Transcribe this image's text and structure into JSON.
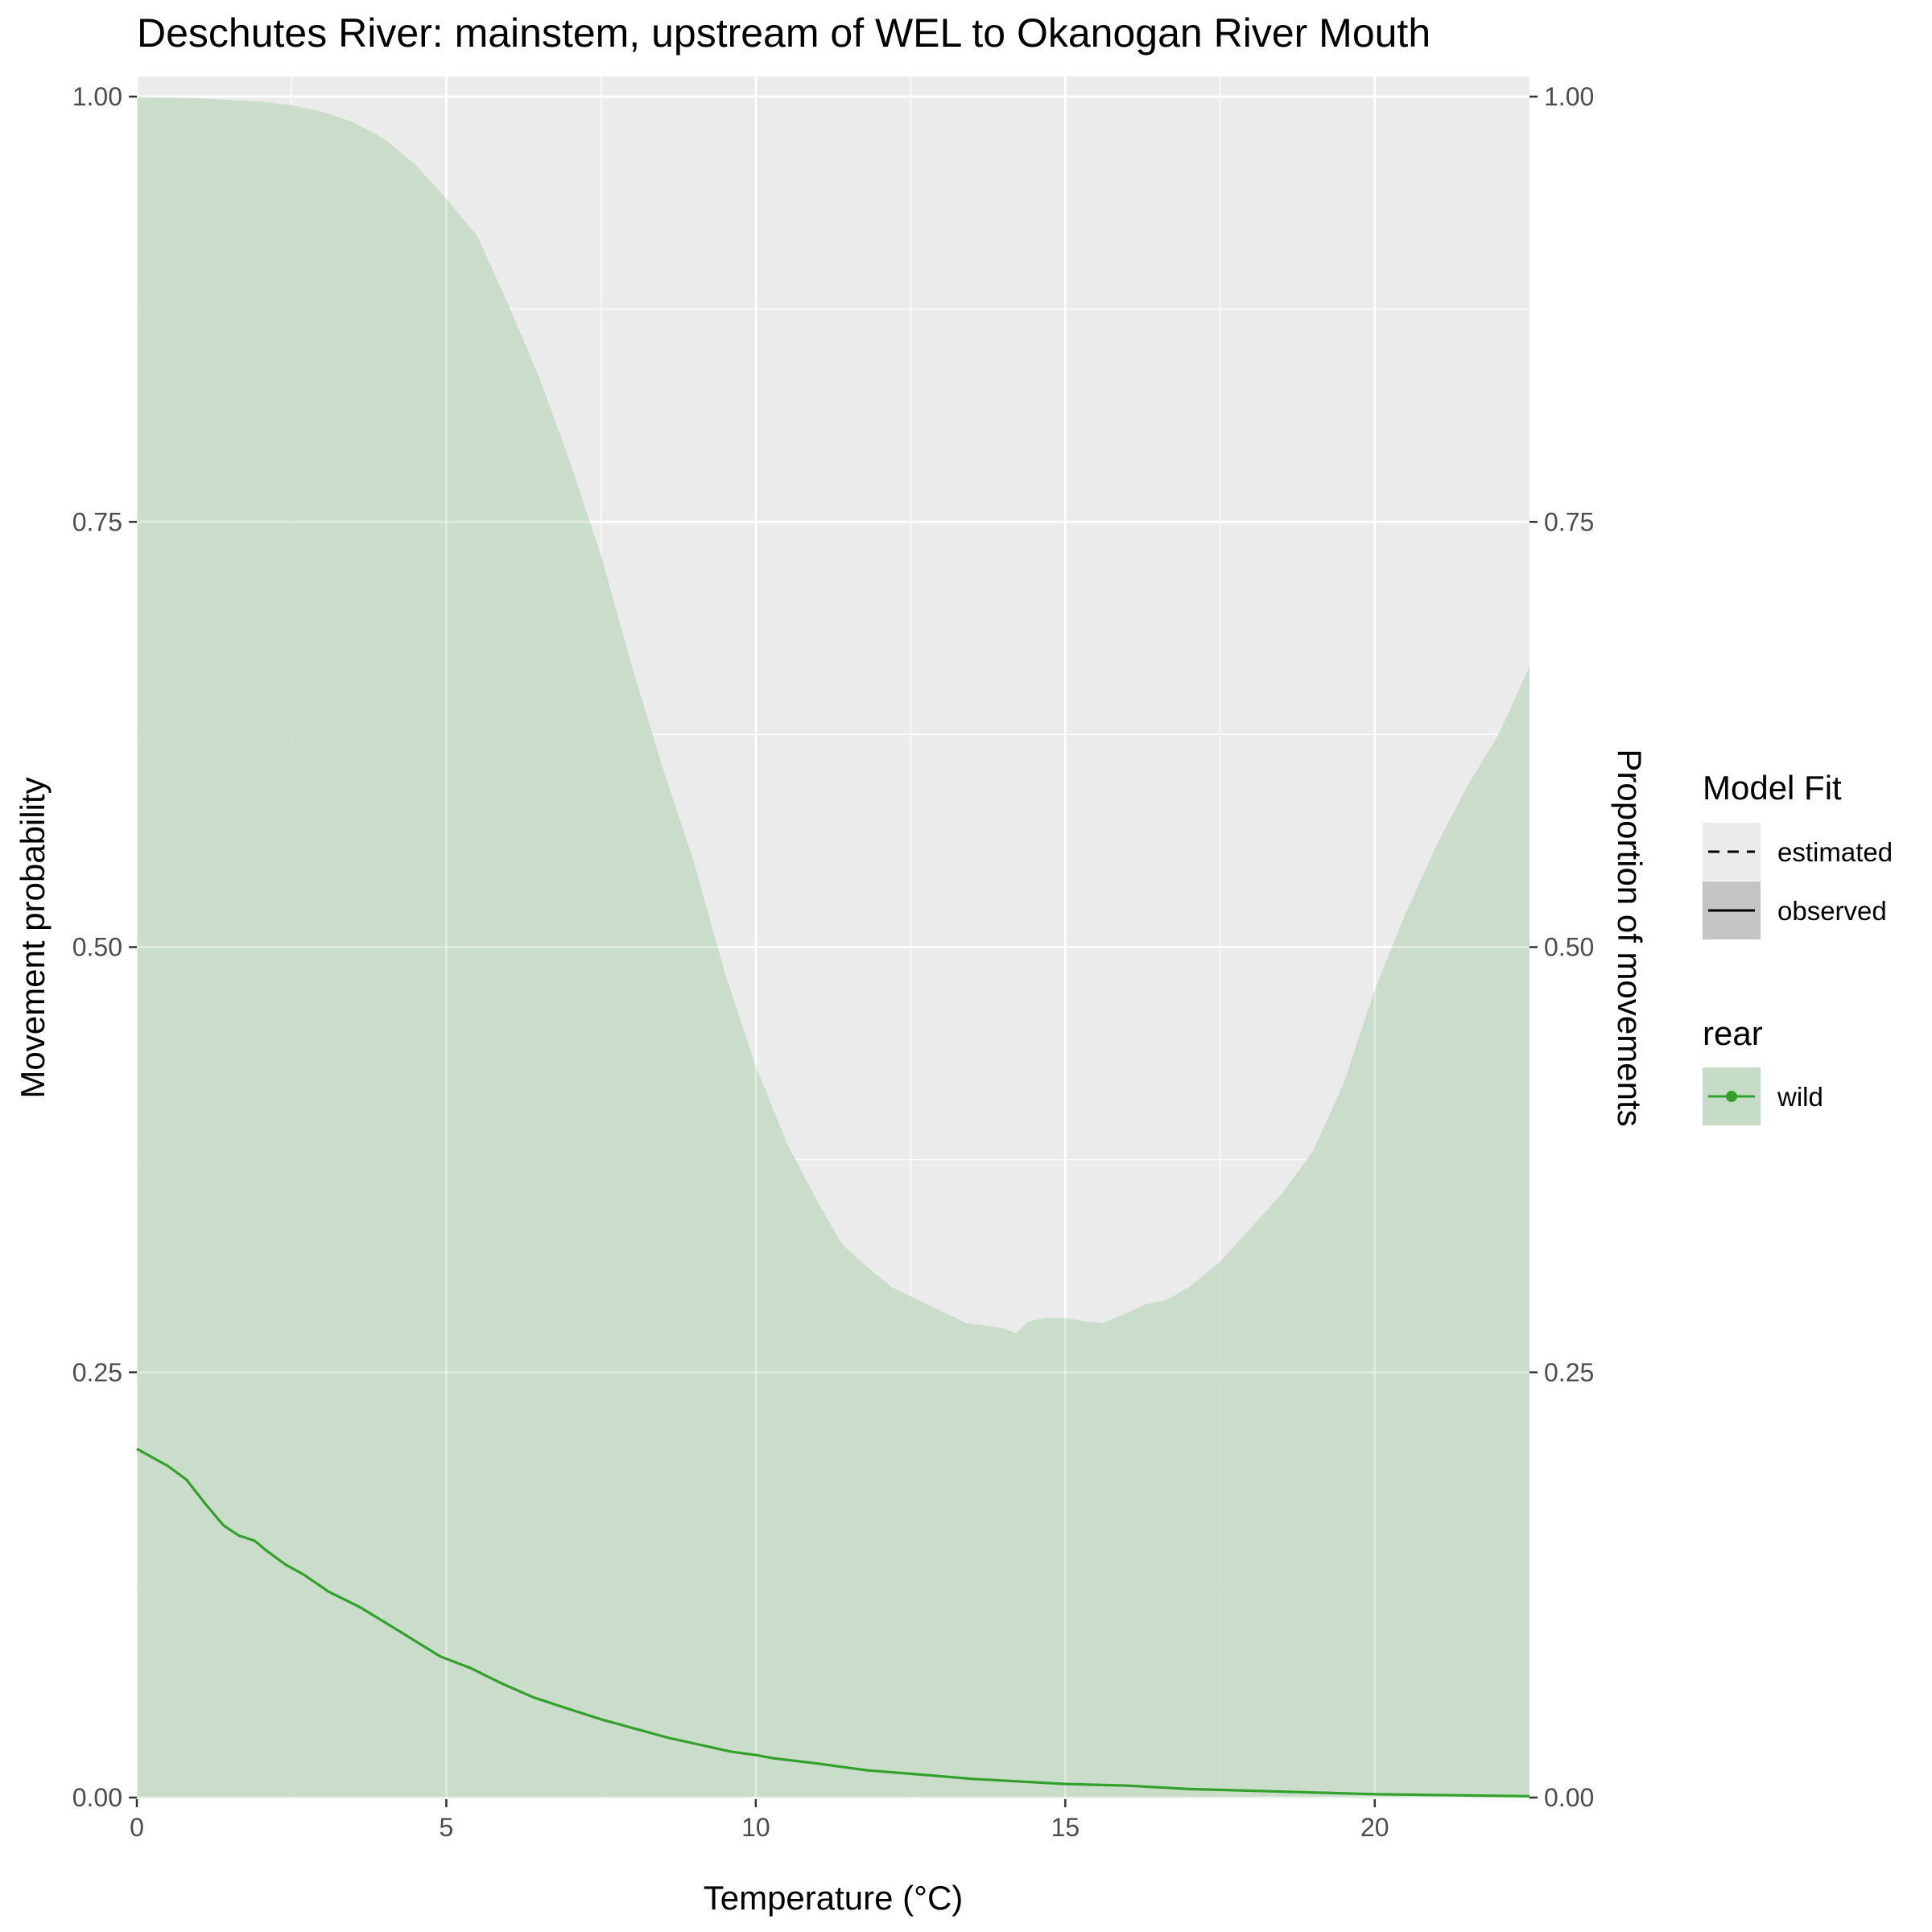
{
  "chart_data": {
    "type": "area",
    "title": "Deschutes River: mainstem, upstream of WEL to Okanogan River Mouth",
    "xlabel": "Temperature (°C)",
    "ylabel": "Movement probability",
    "ylabel_right": "Proportion of movements",
    "xlim": [
      0,
      22.5
    ],
    "ylim": [
      0,
      1
    ],
    "x_ticks": [
      0,
      5,
      10,
      15,
      20
    ],
    "x_tick_labels": [
      "0",
      "5",
      "10",
      "15",
      "20"
    ],
    "y_ticks": [
      0,
      0.25,
      0.5,
      0.75,
      1.0
    ],
    "y_tick_labels": [
      "0.00",
      "0.25",
      "0.50",
      "0.75",
      "1.00"
    ],
    "grid": true,
    "legend_position": "right",
    "colors": {
      "panel_bg": "#ebebeb",
      "grid": "#ffffff",
      "band_fill": "#c6dcc6",
      "line": "#33a02c",
      "legend_key_bg": "#ebebeb",
      "legend_key_observed_bg": "#c4c4c4"
    },
    "legends": [
      {
        "title": "Model Fit",
        "entries": [
          {
            "label": "estimated",
            "linetype": "dashed"
          },
          {
            "label": "observed",
            "linetype": "solid"
          }
        ]
      },
      {
        "title": "rear",
        "entries": [
          {
            "label": "wild",
            "linetype": "solid",
            "marker": "point"
          }
        ]
      }
    ],
    "series": [
      {
        "name": "wild",
        "x": [
          0,
          0.5,
          0.8,
          1.1,
          1.4,
          1.65,
          1.9,
          2.1,
          2.4,
          2.7,
          3.1,
          3.6,
          4.1,
          4.5,
          4.9,
          5.4,
          5.9,
          6.4,
          6.9,
          7.5,
          8.0,
          8.2,
          8.6,
          9.1,
          9.6,
          10.0,
          10.3,
          11.0,
          11.8,
          12.5,
          13.5,
          14.5,
          15.0,
          16.0,
          17.0,
          18.0,
          19.0,
          20.0,
          21.0,
          22.0,
          22.5
        ],
        "values": [
          0.205,
          0.195,
          0.187,
          0.173,
          0.16,
          0.154,
          0.151,
          0.145,
          0.137,
          0.131,
          0.121,
          0.112,
          0.101,
          0.092,
          0.083,
          0.076,
          0.067,
          0.059,
          0.053,
          0.046,
          0.041,
          0.039,
          0.035,
          0.031,
          0.027,
          0.025,
          0.023,
          0.02,
          0.016,
          0.014,
          0.011,
          0.009,
          0.008,
          0.007,
          0.005,
          0.004,
          0.003,
          0.002,
          0.0015,
          0.001,
          0.0008
        ],
        "ci_lower": [
          0,
          0,
          0,
          0,
          0,
          0,
          0,
          0,
          0,
          0,
          0,
          0,
          0,
          0,
          0,
          0,
          0,
          0,
          0,
          0,
          0,
          0,
          0,
          0,
          0,
          0,
          0,
          0,
          0,
          0,
          0,
          0,
          0,
          0,
          0,
          0,
          0,
          0,
          0,
          0,
          0
        ],
        "ci_upper_x": [
          0,
          1,
          2,
          2.5,
          3,
          3.5,
          4,
          4.5,
          5,
          5.5,
          6,
          6.5,
          7,
          7.5,
          8,
          8.5,
          9,
          9.5,
          10,
          10.5,
          11,
          11.4,
          11.8,
          12.2,
          12.6,
          13,
          13.4,
          14,
          14.2,
          14.4,
          14.7,
          15,
          15.3,
          15.6,
          16,
          16.3,
          16.6,
          17,
          17.5,
          18,
          18.5,
          19,
          19.5,
          20,
          20.5,
          21,
          21.5,
          22,
          22.5
        ],
        "ci_upper": [
          1.0,
          0.999,
          0.997,
          0.995,
          0.991,
          0.985,
          0.975,
          0.96,
          0.94,
          0.918,
          0.878,
          0.835,
          0.785,
          0.73,
          0.665,
          0.605,
          0.55,
          0.485,
          0.43,
          0.385,
          0.35,
          0.325,
          0.312,
          0.3,
          0.293,
          0.286,
          0.279,
          0.276,
          0.273,
          0.28,
          0.282,
          0.282,
          0.28,
          0.279,
          0.285,
          0.29,
          0.292,
          0.3,
          0.315,
          0.335,
          0.355,
          0.38,
          0.42,
          0.475,
          0.52,
          0.56,
          0.595,
          0.625,
          0.665
        ]
      }
    ]
  }
}
